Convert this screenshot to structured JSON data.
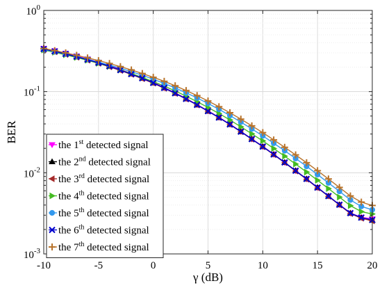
{
  "chart_data": {
    "type": "line",
    "xlabel": "γ (dB)",
    "ylabel": "BER",
    "xlim": [
      -10,
      20
    ],
    "ylim": [
      0.001,
      1
    ],
    "yscale": "log",
    "grid": true,
    "legend_position": "bottom-left",
    "x_ticks": [
      -10,
      -5,
      0,
      5,
      10,
      15,
      20
    ],
    "x_tick_labels": [
      "-10",
      "-5",
      "0",
      "5",
      "10",
      "15",
      "20"
    ],
    "y_ticks": [
      {
        "value": 1,
        "base": "10",
        "exp": "0"
      },
      {
        "value": 0.1,
        "base": "10",
        "exp": "-1"
      },
      {
        "value": 0.01,
        "base": "10",
        "exp": "-2"
      },
      {
        "value": 0.001,
        "base": "10",
        "exp": "-3"
      }
    ],
    "x": [
      -10,
      -9,
      -8,
      -7,
      -6,
      -5,
      -4,
      -3,
      -2,
      -1,
      0,
      1,
      2,
      3,
      4,
      5,
      6,
      7,
      8,
      9,
      10,
      11,
      12,
      13,
      14,
      15,
      16,
      17,
      18,
      19,
      20
    ],
    "series": [
      {
        "pre": "the 1",
        "sup": "st",
        "post": " detected signal",
        "color": "#ff00ff",
        "marker": "triangle-down",
        "values": [
          0.34,
          0.318,
          0.296,
          0.274,
          0.252,
          0.23,
          0.208,
          0.187,
          0.167,
          0.148,
          0.13,
          0.112,
          0.0963,
          0.0822,
          0.0692,
          0.0579,
          0.0482,
          0.0397,
          0.0323,
          0.0261,
          0.0211,
          0.0169,
          0.0134,
          0.0106,
          0.00841,
          0.00658,
          0.00517,
          0.00405,
          0.00319,
          0.00283,
          0.0027
        ]
      },
      {
        "pre": "the 2",
        "sup": "nd",
        "post": " detected signal",
        "color": "#000000",
        "marker": "triangle-up",
        "values": [
          0.336,
          0.314,
          0.292,
          0.27,
          0.248,
          0.227,
          0.205,
          0.185,
          0.165,
          0.146,
          0.128,
          0.111,
          0.0955,
          0.0815,
          0.0687,
          0.0575,
          0.0479,
          0.0394,
          0.0321,
          0.026,
          0.021,
          0.0168,
          0.0134,
          0.0106,
          0.00838,
          0.00656,
          0.00515,
          0.00403,
          0.00317,
          0.00279,
          0.0026
        ]
      },
      {
        "pre": "the 3",
        "sup": "rd",
        "post": " detected signal",
        "color": "#a52a2a",
        "marker": "triangle-left",
        "values": [
          0.33,
          0.309,
          0.287,
          0.265,
          0.244,
          0.223,
          0.202,
          0.182,
          0.163,
          0.144,
          0.127,
          0.11,
          0.095,
          0.081,
          0.0684,
          0.0573,
          0.0478,
          0.0393,
          0.032,
          0.0259,
          0.0209,
          0.0167,
          0.0133,
          0.0105,
          0.00832,
          0.00651,
          0.00512,
          0.004,
          0.00314,
          0.00275,
          0.00255
        ]
      },
      {
        "pre": "the 4",
        "sup": "th",
        "post": " detected signal",
        "color": "#44bb22",
        "marker": "triangle-right",
        "values": [
          0.325,
          0.305,
          0.284,
          0.263,
          0.243,
          0.223,
          0.204,
          0.185,
          0.167,
          0.149,
          0.133,
          0.117,
          0.102,
          0.0878,
          0.0752,
          0.0638,
          0.0538,
          0.0447,
          0.0368,
          0.0302,
          0.0247,
          0.0199,
          0.016,
          0.0128,
          0.0102,
          0.00808,
          0.00638,
          0.00501,
          0.00393,
          0.00332,
          0.0031
        ]
      },
      {
        "pre": "the 5",
        "sup": "th",
        "post": " detected signal",
        "color": "#3399ee",
        "marker": "circle",
        "values": [
          0.33,
          0.31,
          0.29,
          0.27,
          0.25,
          0.231,
          0.212,
          0.194,
          0.176,
          0.159,
          0.142,
          0.126,
          0.111,
          0.0966,
          0.0835,
          0.0714,
          0.0605,
          0.0507,
          0.0421,
          0.0347,
          0.0285,
          0.0231,
          0.0187,
          0.015,
          0.012,
          0.0095,
          0.0075,
          0.0059,
          0.00462,
          0.00385,
          0.0035
        ]
      },
      {
        "pre": "the 6",
        "sup": "th",
        "post": " detected signal",
        "color": "#0000cc",
        "marker": "x",
        "values": [
          0.335,
          0.313,
          0.291,
          0.269,
          0.247,
          0.226,
          0.205,
          0.184,
          0.164,
          0.146,
          0.128,
          0.111,
          0.0954,
          0.0813,
          0.0686,
          0.0574,
          0.0478,
          0.0394,
          0.0321,
          0.026,
          0.021,
          0.0168,
          0.0134,
          0.0106,
          0.0084,
          0.00657,
          0.00516,
          0.00404,
          0.00318,
          0.0028,
          0.00262
        ]
      },
      {
        "pre": "the 7",
        "sup": "th",
        "post": " detected signal",
        "color": "#b8732b",
        "marker": "plus",
        "values": [
          0.34,
          0.32,
          0.3,
          0.28,
          0.26,
          0.241,
          0.222,
          0.203,
          0.185,
          0.167,
          0.15,
          0.134,
          0.118,
          0.103,
          0.0893,
          0.0767,
          0.0652,
          0.0549,
          0.0458,
          0.0379,
          0.0312,
          0.0254,
          0.0206,
          0.0166,
          0.0133,
          0.0106,
          0.00838,
          0.0066,
          0.00518,
          0.00435,
          0.00395
        ]
      }
    ]
  }
}
